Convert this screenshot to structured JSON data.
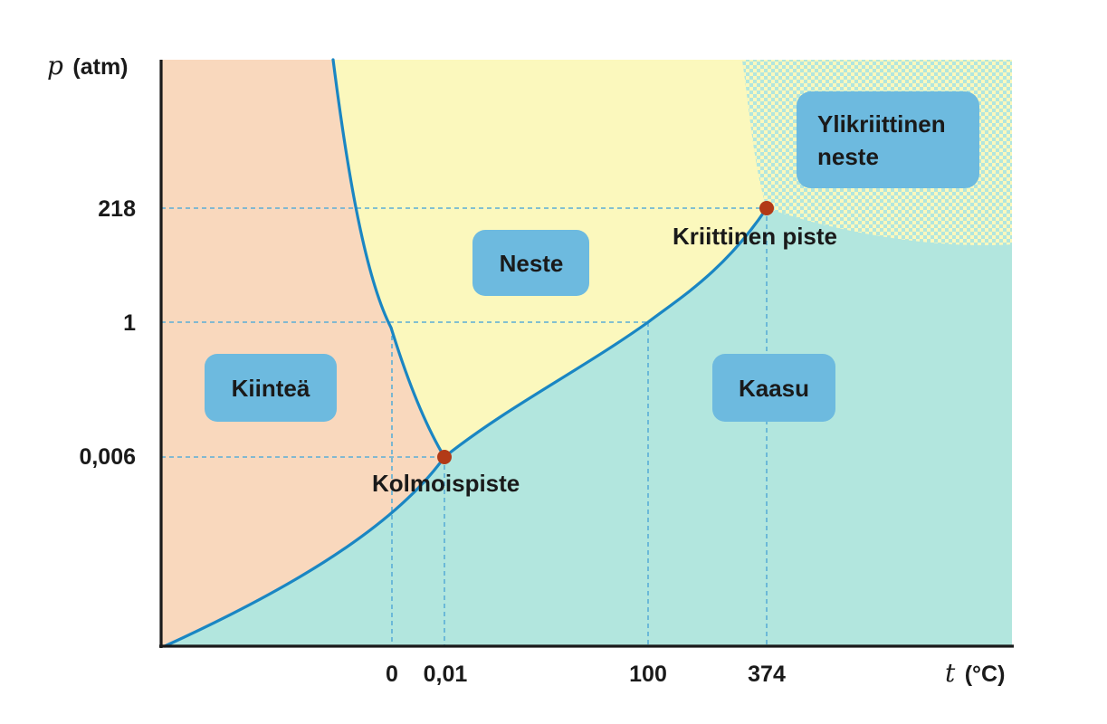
{
  "axes": {
    "y_variable": "p",
    "y_unit": "(atm)",
    "x_variable": "t",
    "x_unit": "(°C)",
    "y_ticks": [
      "218",
      "1",
      "0,006"
    ],
    "x_ticks": [
      "0",
      "0,01",
      "100",
      "374"
    ]
  },
  "regions": {
    "solid": "Kiinteä",
    "liquid": "Neste",
    "gas": "Kaasu",
    "supercritical_line1": "Ylikriittinen",
    "supercritical_line2": "neste"
  },
  "points": {
    "triple": "Kolmoispiste",
    "critical": "Kriittinen piste"
  },
  "colors": {
    "solid": "#f9d8bd",
    "liquid": "#fbf8bd",
    "gas": "#b2e6de",
    "boundary": "#1a86c3",
    "guide": "#5aaed6",
    "label_box": "#6dbadf",
    "point": "#b23a17"
  }
}
